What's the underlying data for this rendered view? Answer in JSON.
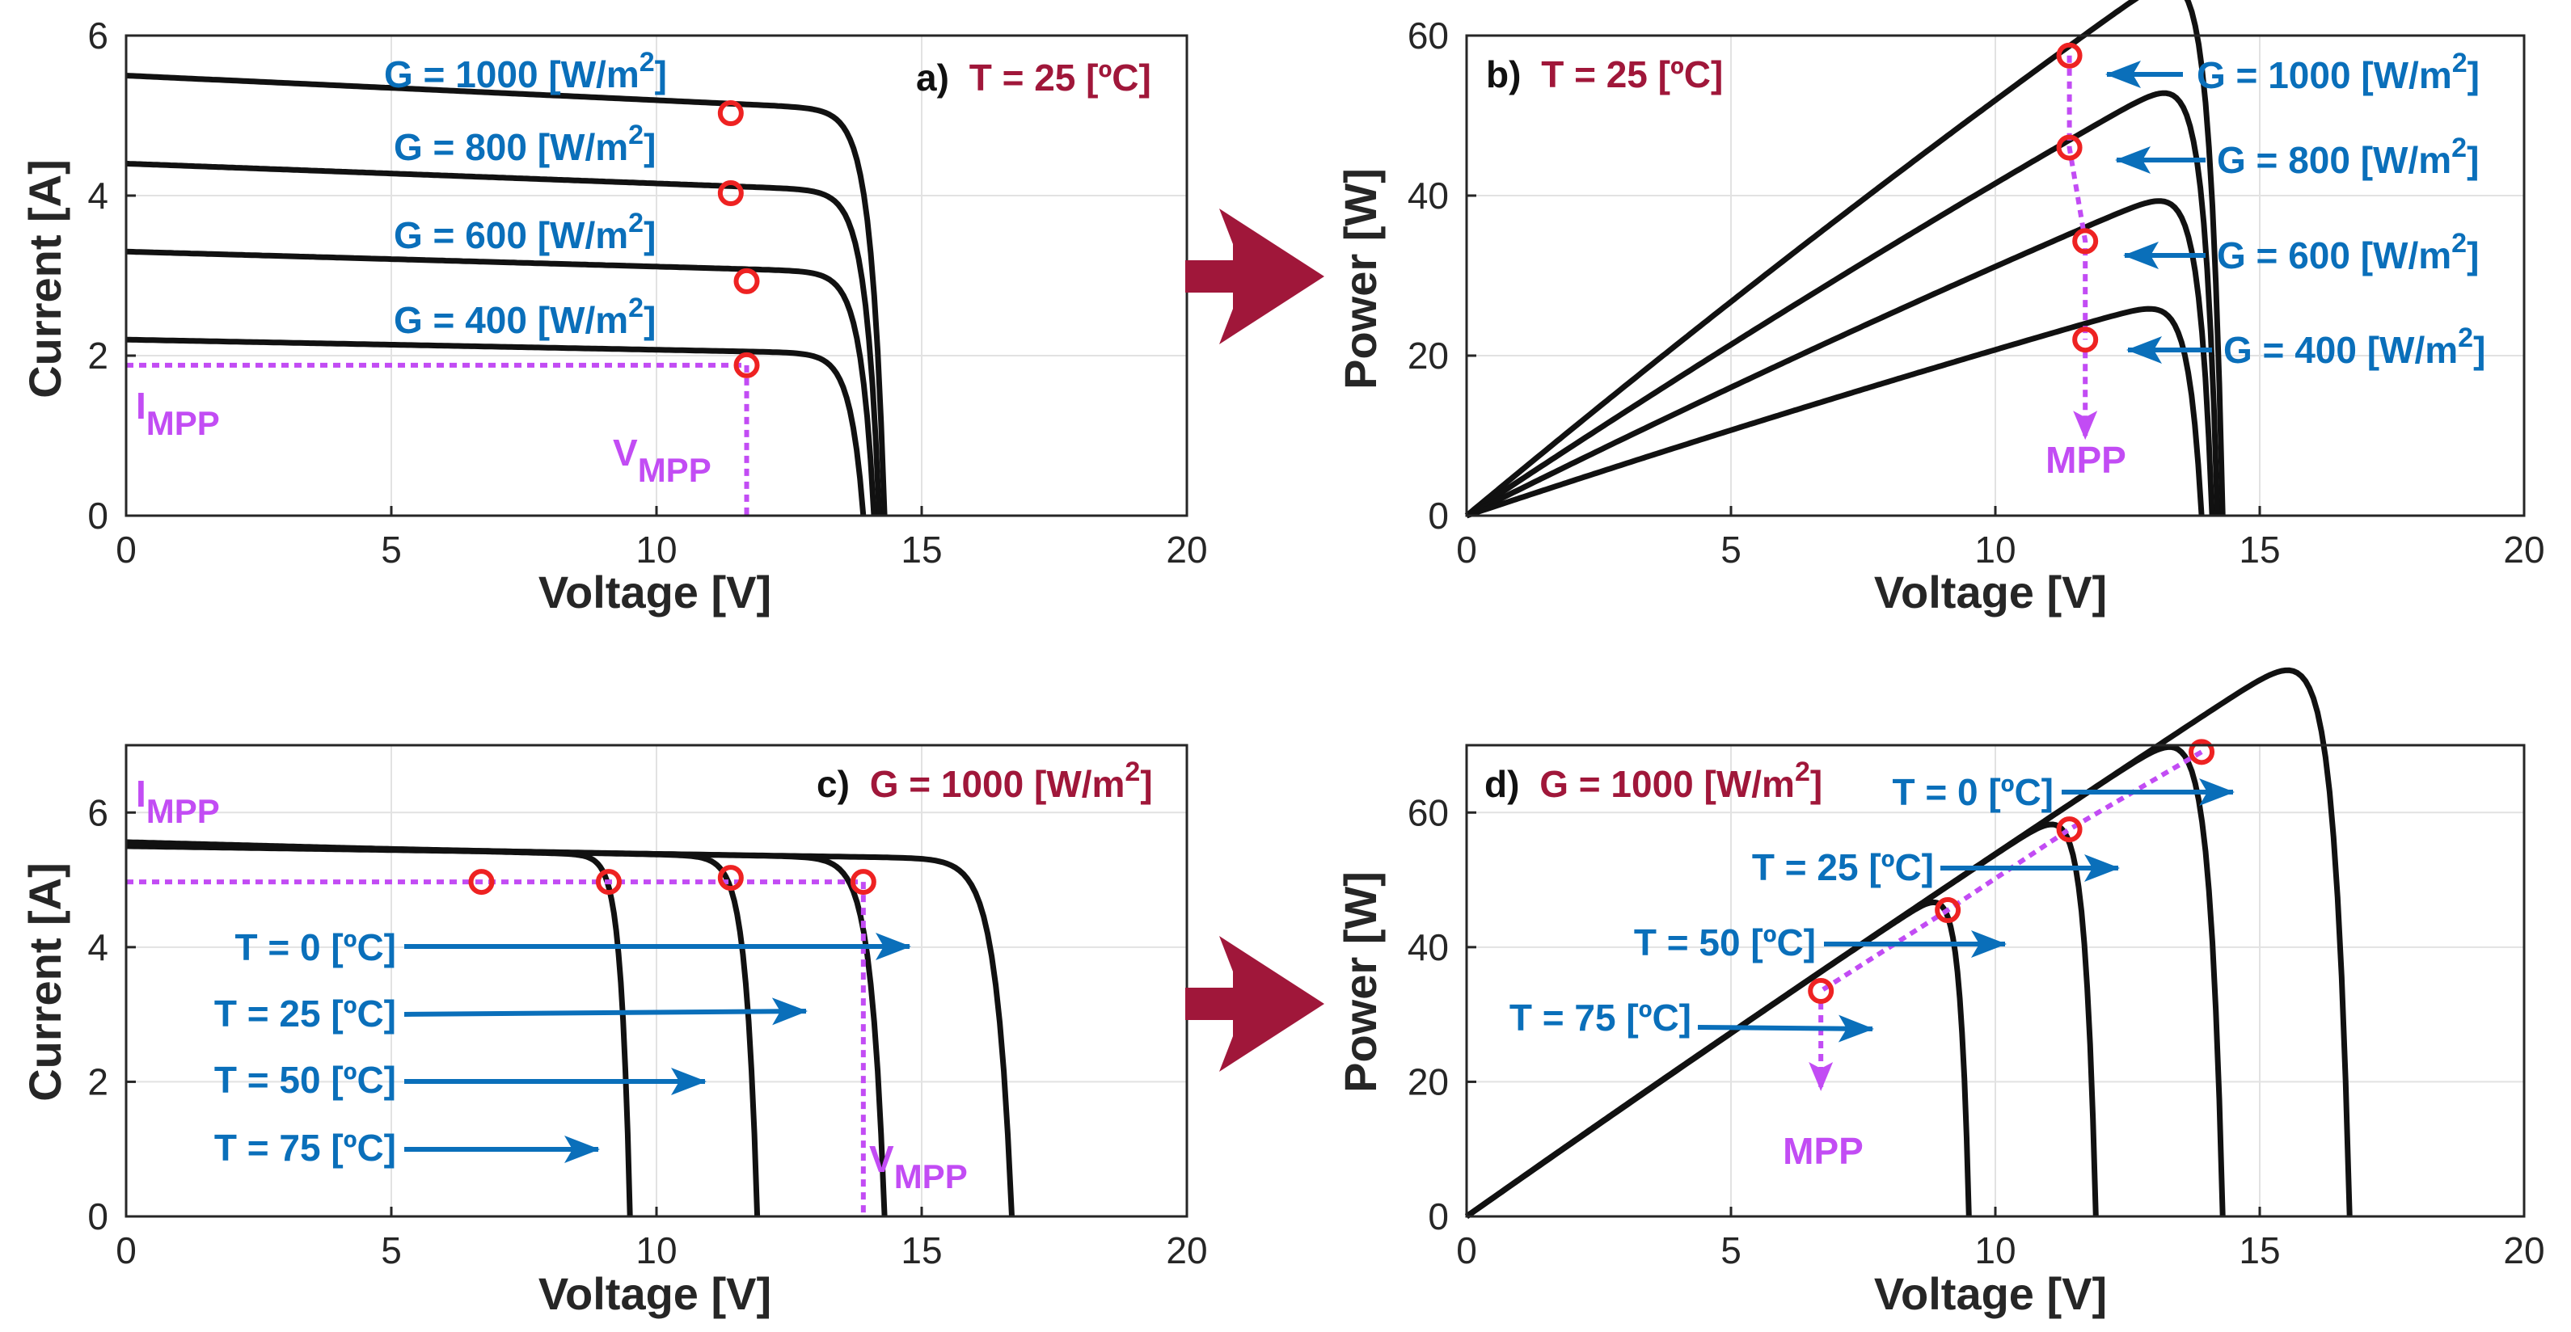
{
  "colors": {
    "curve": "#111111",
    "mpp_marker": "#ee2222",
    "mpp_guide": "#c24cf4",
    "label_blue": "#0a6fba",
    "condition_maroon": "#a0173a",
    "big_arrow": "#a0173a",
    "grid": "#e2e2e2"
  },
  "chart_data": [
    {
      "id": "a",
      "type": "line",
      "panel_letter": "a)",
      "condition": "T = 25 [ºC]",
      "xlabel": "Voltage [V]",
      "ylabel": "Current [A]",
      "xlim": [
        0,
        20
      ],
      "ylim": [
        0,
        6
      ],
      "xticks": [
        "0",
        "5",
        "10",
        "15",
        "20"
      ],
      "yticks": [
        "0",
        "2",
        "4",
        "6"
      ],
      "series": [
        {
          "name": "G = 1000 [W/m²]",
          "base": "G = 1000 [W/m",
          "sup": "2",
          "close": "]",
          "isc": 5.5,
          "voc": 14.3,
          "mpp": [
            11.4,
            5.03
          ]
        },
        {
          "name": "G = 800 [W/m²]",
          "base": "G = 800 [W/m",
          "sup": "2",
          "close": "]",
          "isc": 4.4,
          "voc": 14.2,
          "mpp": [
            11.4,
            4.03
          ]
        },
        {
          "name": "G = 600 [W/m²]",
          "base": "G = 600 [W/m",
          "sup": "2",
          "close": "]",
          "isc": 3.3,
          "voc": 14.1,
          "mpp": [
            11.7,
            2.93
          ]
        },
        {
          "name": "G = 400 [W/m²]",
          "base": "G = 400 [W/m",
          "sup": "2",
          "close": "]",
          "isc": 2.2,
          "voc": 13.9,
          "mpp": [
            11.7,
            1.88
          ]
        }
      ],
      "mpp_labels": {
        "current": {
          "main": "I",
          "sub": "MPP"
        },
        "voltage": {
          "main": "V",
          "sub": "MPP"
        }
      }
    },
    {
      "id": "b",
      "type": "line",
      "panel_letter": "b)",
      "condition": "T = 25 [ºC]",
      "xlabel": "Voltage [V]",
      "ylabel": "Power [W]",
      "xlim": [
        0,
        20
      ],
      "ylim": [
        0,
        60
      ],
      "xticks": [
        "0",
        "5",
        "10",
        "15",
        "20"
      ],
      "yticks": [
        "0",
        "20",
        "40",
        "60"
      ],
      "series": [
        {
          "name": "G = 1000 [W/m²]",
          "base": "G = 1000 [W/m",
          "sup": "2",
          "close": "]",
          "isc": 5.5,
          "voc": 14.3,
          "mpp": [
            11.4,
            57.5
          ]
        },
        {
          "name": "G = 800 [W/m²]",
          "base": "G = 800 [W/m",
          "sup": "2",
          "close": "]",
          "isc": 4.4,
          "voc": 14.2,
          "mpp": [
            11.4,
            46
          ]
        },
        {
          "name": "G = 600 [W/m²]",
          "base": "G = 600 [W/m",
          "sup": "2",
          "close": "]",
          "isc": 3.3,
          "voc": 14.1,
          "mpp": [
            11.7,
            34.3
          ]
        },
        {
          "name": "G = 400 [W/m²]",
          "base": "G = 400 [W/m",
          "sup": "2",
          "close": "]",
          "isc": 2.2,
          "voc": 13.9,
          "mpp": [
            11.7,
            22
          ]
        }
      ],
      "mpp_label": "MPP"
    },
    {
      "id": "c",
      "type": "line",
      "panel_letter": "c)",
      "condition": {
        "base": "G = 1000 [W/m",
        "sup": "2",
        "close": "]"
      },
      "xlabel": "Voltage [V]",
      "ylabel": "Current [A]",
      "xlim": [
        0,
        20
      ],
      "ylim": [
        0,
        7
      ],
      "xticks": [
        "0",
        "5",
        "10",
        "15",
        "20"
      ],
      "yticks": [
        "0",
        "2",
        "4",
        "6"
      ],
      "series": [
        {
          "name": "T = 0 [ºC]",
          "isc": 5.5,
          "voc": 16.7,
          "mpp": [
            13.9,
            4.97
          ]
        },
        {
          "name": "T = 25 [ºC]",
          "isc": 5.52,
          "voc": 14.3,
          "mpp": [
            11.4,
            5.03
          ]
        },
        {
          "name": "T = 50 [ºC]",
          "isc": 5.54,
          "voc": 11.9,
          "mpp": [
            9.1,
            4.97
          ]
        },
        {
          "name": "T = 75 [ºC]",
          "isc": 5.56,
          "voc": 9.5,
          "mpp": [
            6.7,
            4.97
          ]
        }
      ],
      "mpp_labels": {
        "current": {
          "main": "I",
          "sub": "MPP"
        },
        "voltage": {
          "main": "V",
          "sub": "MPP"
        }
      }
    },
    {
      "id": "d",
      "type": "line",
      "panel_letter": "d)",
      "condition": {
        "base": "G = 1000 [W/m",
        "sup": "2",
        "close": "]"
      },
      "xlabel": "Voltage [V]",
      "ylabel": "Power [W]",
      "xlim": [
        0,
        20
      ],
      "ylim": [
        0,
        70
      ],
      "xticks": [
        "0",
        "5",
        "10",
        "15",
        "20"
      ],
      "yticks": [
        "0",
        "20",
        "40",
        "60"
      ],
      "series": [
        {
          "name": "T = 0 [ºC]",
          "isc": 5.5,
          "voc": 16.7,
          "mpp": [
            13.9,
            69
          ]
        },
        {
          "name": "T = 25 [ºC]",
          "isc": 5.52,
          "voc": 14.3,
          "mpp": [
            11.4,
            57.5
          ]
        },
        {
          "name": "T = 50 [ºC]",
          "isc": 5.54,
          "voc": 11.9,
          "mpp": [
            9.1,
            45.5
          ]
        },
        {
          "name": "T = 75 [ºC]",
          "isc": 5.56,
          "voc": 9.5,
          "mpp": [
            6.7,
            33.5
          ]
        }
      ],
      "mpp_label": "MPP"
    }
  ]
}
